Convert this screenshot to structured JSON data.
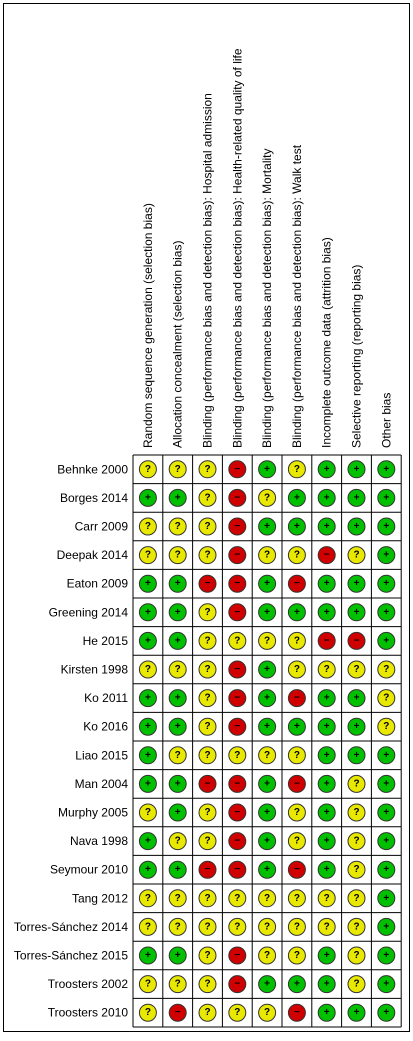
{
  "columns": [
    "Random sequence generation (selection bias)",
    "Allocation concealment (selection bias)",
    "Blinding (performance bias and detection bias): Hospital admission",
    "Blinding (performance bias and detection bias): Health-related quality of life",
    "Blinding (performance bias and detection bias): Mortality",
    "Blinding (performance bias and detection bias): Walk test",
    "Incomplete outcome data (attrition bias)",
    "Selective reporting (reporting bias)",
    "Other bias"
  ],
  "colors": {
    "+": "#00c000",
    "?": "#e8e800",
    "−": "#d00000"
  },
  "rows": [
    {
      "label": "Behnke 2000",
      "cells": [
        "?",
        "?",
        "?",
        "−",
        "+",
        "?",
        "+",
        "+",
        "+"
      ]
    },
    {
      "label": "Borges 2014",
      "cells": [
        "+",
        "+",
        "?",
        "−",
        "?",
        "+",
        "+",
        "+",
        "+"
      ]
    },
    {
      "label": "Carr 2009",
      "cells": [
        "?",
        "?",
        "?",
        "−",
        "+",
        "+",
        "+",
        "+",
        "+"
      ]
    },
    {
      "label": "Deepak 2014",
      "cells": [
        "?",
        "?",
        "?",
        "−",
        "?",
        "?",
        "−",
        "?",
        "+"
      ]
    },
    {
      "label": "Eaton 2009",
      "cells": [
        "+",
        "+",
        "−",
        "−",
        "+",
        "−",
        "+",
        "+",
        "+"
      ]
    },
    {
      "label": "Greening 2014",
      "cells": [
        "+",
        "+",
        "?",
        "−",
        "+",
        "+",
        "+",
        "+",
        "+"
      ]
    },
    {
      "label": "He 2015",
      "cells": [
        "+",
        "+",
        "?",
        "?",
        "?",
        "?",
        "−",
        "−",
        "+"
      ]
    },
    {
      "label": "Kirsten 1998",
      "cells": [
        "?",
        "?",
        "?",
        "−",
        "+",
        "?",
        "?",
        "?",
        "?"
      ]
    },
    {
      "label": "Ko 2011",
      "cells": [
        "+",
        "+",
        "?",
        "−",
        "+",
        "−",
        "+",
        "+",
        "?"
      ]
    },
    {
      "label": "Ko 2016",
      "cells": [
        "+",
        "+",
        "?",
        "−",
        "+",
        "+",
        "+",
        "+",
        "?"
      ]
    },
    {
      "label": "Liao 2015",
      "cells": [
        "+",
        "?",
        "?",
        "?",
        "?",
        "?",
        "+",
        "+",
        "+"
      ]
    },
    {
      "label": "Man 2004",
      "cells": [
        "+",
        "+",
        "−",
        "−",
        "+",
        "−",
        "+",
        "?",
        "+"
      ]
    },
    {
      "label": "Murphy 2005",
      "cells": [
        "?",
        "+",
        "?",
        "−",
        "+",
        "?",
        "+",
        "?",
        "+"
      ]
    },
    {
      "label": "Nava 1998",
      "cells": [
        "+",
        "?",
        "?",
        "−",
        "+",
        "?",
        "+",
        "?",
        "+"
      ]
    },
    {
      "label": "Seymour 2010",
      "cells": [
        "+",
        "+",
        "−",
        "−",
        "+",
        "−",
        "+",
        "?",
        "+"
      ]
    },
    {
      "label": "Tang 2012",
      "cells": [
        "?",
        "?",
        "?",
        "?",
        "?",
        "?",
        "?",
        "?",
        "+"
      ]
    },
    {
      "label": "Torres-Sánchez 2014",
      "cells": [
        "?",
        "?",
        "?",
        "?",
        "?",
        "?",
        "?",
        "?",
        "+"
      ]
    },
    {
      "label": "Torres-Sánchez 2015",
      "cells": [
        "+",
        "+",
        "?",
        "−",
        "?",
        "?",
        "+",
        "?",
        "+"
      ]
    },
    {
      "label": "Troosters 2002",
      "cells": [
        "?",
        "?",
        "?",
        "−",
        "+",
        "+",
        "+",
        "?",
        "+"
      ]
    },
    {
      "label": "Troosters 2010",
      "cells": [
        "?",
        "−",
        "?",
        "?",
        "?",
        "−",
        "+",
        "+",
        "+"
      ]
    }
  ]
}
